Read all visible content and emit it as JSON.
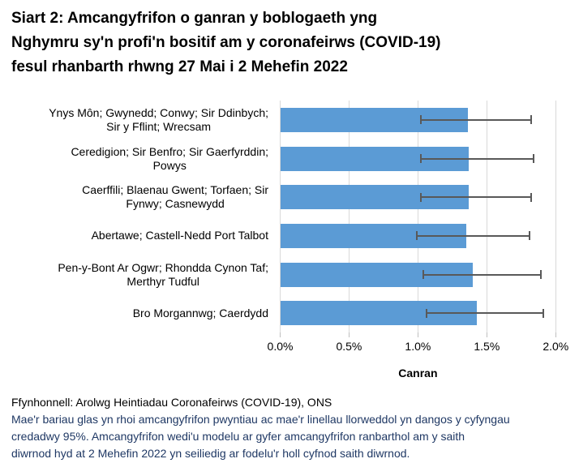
{
  "title": {
    "lines": [
      "Siart 2: Amcangyfrifon o ganran y boblogaeth yng",
      "Nghymru sy'n profi'n bositif am y coronafeirws (COVID-19)",
      "fesul rhanbarth rhwng 27 Mai i 2 Mehefin 2022"
    ],
    "full": "Siart 2: Amcangyfrifon o ganran y boblogaeth yng Nghymru sy'n profi'n bositif am y coronafeirws (COVID-19) fesul rhanbarth rhwng 27 Mai i 2 Mehefin 2022"
  },
  "chart_data": {
    "type": "bar",
    "orientation": "horizontal",
    "title": "Siart 2: Amcangyfrifon o ganran y boblogaeth yng Nghymru sy'n profi'n bositif am y coronafeirws (COVID-19) fesul rhanbarth rhwng 27 Mai i 2 Mehefin 2022",
    "xlabel": "Canran",
    "ylabel": "",
    "xlim": [
      0,
      2.0
    ],
    "grid": true,
    "legend": false,
    "x_tick_values": [
      0,
      0.5,
      1.0,
      1.5,
      2.0
    ],
    "x_tick_labels": [
      "0.0%",
      "0.5%",
      "1.0%",
      "1.5%",
      "2.0%"
    ],
    "bar_color": "#5B9BD5",
    "error_bar_color": "#595959",
    "categories": [
      "Ynys Môn; Gwynedd; Conwy; Sir Ddinbych; Sir y Fflint; Wrecsam",
      "Ceredigion; Sir Benfro; Sir Gaerfyrddin; Powys",
      "Caerffili; Blaenau Gwent; Torfaen; Sir Fynwy; Casnewydd",
      "Abertawe; Castell-Nedd Port Talbot",
      "Pen-y-Bont Ar Ogwr; Rhondda Cynon Taf; Merthyr Tudful",
      "Bro Morgannwg; Caerdydd"
    ],
    "category_lines": [
      [
        "Ynys Môn; Gwynedd; Conwy; Sir Ddinbych;",
        "Sir y Fflint; Wrecsam"
      ],
      [
        "Ceredigion; Sir Benfro; Sir Gaerfyrddin;",
        "Powys"
      ],
      [
        "Caerffili; Blaenau Gwent; Torfaen; Sir",
        "Fynwy; Casnewydd"
      ],
      [
        "Abertawe; Castell-Nedd Port Talbot"
      ],
      [
        "Pen-y-Bont Ar Ogwr; Rhondda Cynon Taf;",
        "Merthyr Tudful"
      ],
      [
        "Bro Morgannwg; Caerdydd"
      ]
    ],
    "values": [
      1.36,
      1.37,
      1.37,
      1.35,
      1.4,
      1.43
    ],
    "ci_low": [
      1.02,
      1.02,
      1.02,
      0.99,
      1.04,
      1.06
    ],
    "ci_high": [
      1.82,
      1.84,
      1.82,
      1.81,
      1.89,
      1.91
    ]
  },
  "footer": {
    "source": "Ffynhonnell: Arolwg Heintiadau Coronafeirws (COVID-19), ONS",
    "note_lines": [
      "Mae'r bariau glas yn rhoi amcangyfrifon pwyntiau ac mae'r linellau llorweddol yn dangos y cyfyngau",
      "credadwy 95%. Amcangyfrifon wedi'u modelu ar gyfer amcangyfrifon ranbarthol am y saith",
      "diwrnod hyd at 2 Mehefin 2022 yn seiliedig ar fodelu'r holl cyfnod saith diwrnod."
    ],
    "note_color": "#1F3864"
  }
}
